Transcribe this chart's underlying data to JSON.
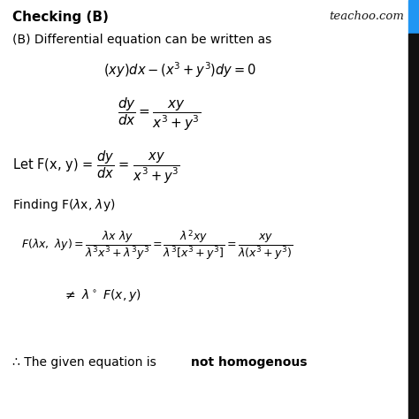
{
  "bg_color": "#ffffff",
  "watermark": "teachoo.com",
  "watermark_color": "#1a1a1a",
  "stripe_color": "#2196F3",
  "border_color": "#000000",
  "text_color": "#000000",
  "title": "Checking (B)",
  "title_fontsize": 11,
  "title_bold": true,
  "body_fontsize": 10,
  "math_fontsize": 10,
  "line1": "(B) Differential equation can be written as",
  "eq1": "$(xy)dx - (x^3 + y^3)dy = 0$",
  "eq2": "$\\dfrac{dy}{dx} = \\dfrac{xy}{x^3 + y^3}$",
  "let_line": "Let F(x, y) = $\\dfrac{dy}{dx}$ = $\\dfrac{xy}{x^3 + y^3}$",
  "finding_line": "Finding F($\\lambda$x, $\\lambda$y)",
  "eq3": "$F(\\lambda x,\\ \\lambda y) = \\dfrac{\\lambda x\\ \\lambda y}{\\lambda^3 x^3 + \\lambda^3 y^3} = \\dfrac{\\lambda^2 xy}{\\lambda^3[x^3 + y^3]} = \\dfrac{xy}{\\lambda(x^3+y^3)}$",
  "eq4": "$\\neq\\ \\lambda^\\circ\\ F(x, y)$",
  "conclusion_normal": "∴ The given equation is ",
  "conclusion_bold": "not homogenous"
}
